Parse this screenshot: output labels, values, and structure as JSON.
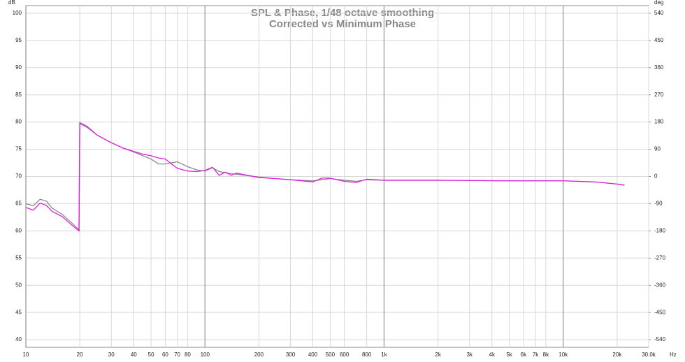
{
  "chart_data": {
    "type": "line",
    "title": "SPL & Phase, 1/48 octave smoothing",
    "subtitle": "Corrected vs Minimum Phase",
    "y_unit": "dB",
    "y2_unit": "deg",
    "x_unit": "Hz",
    "log_x": true,
    "grid": true,
    "xlim": [
      10,
      30000
    ],
    "xticks": [
      10,
      20,
      30,
      40,
      50,
      60,
      70,
      80,
      100,
      200,
      300,
      400,
      500,
      600,
      800,
      {
        "value": 1000,
        "label": "1k"
      },
      {
        "value": 2000,
        "label": "2k"
      },
      {
        "value": 3000,
        "label": "3k"
      },
      {
        "value": 4000,
        "label": "4k"
      },
      {
        "value": 5000,
        "label": "5k"
      },
      {
        "value": 6000,
        "label": "6k"
      },
      {
        "value": 7000,
        "label": "7k"
      },
      {
        "value": 8000,
        "label": "8k"
      },
      {
        "value": 10000,
        "label": "10k"
      },
      {
        "value": 20000,
        "label": "20k"
      },
      {
        "value": 30000,
        "label": "30.0k"
      }
    ],
    "ylim": [
      38.6,
      101.4
    ],
    "yticks": [
      40,
      45,
      50,
      55,
      60,
      65,
      70,
      75,
      80,
      85,
      90,
      95,
      100
    ],
    "y2lim": [
      -565.2,
      565.2
    ],
    "y2ticks": [
      540,
      450,
      360,
      270,
      180,
      90,
      0,
      -90,
      -180,
      -270,
      -360,
      -450,
      -540
    ],
    "x": [
      10,
      11,
      12,
      13,
      14,
      16,
      18,
      19.8,
      20,
      22,
      25,
      30,
      35,
      40,
      45,
      50,
      55,
      60,
      70,
      80,
      90,
      100,
      110,
      120,
      130,
      140,
      150,
      200,
      250,
      300,
      400,
      450,
      500,
      600,
      700,
      800,
      1000,
      2000,
      5000,
      10000,
      15000,
      20000,
      22000
    ],
    "series": [
      {
        "color": "#8a8a8a",
        "values": [
          65,
          64.6,
          65.8,
          65.5,
          64.2,
          63,
          61.5,
          60.2,
          79.7,
          79,
          77.6,
          76.2,
          75.2,
          74.5,
          73.8,
          73.2,
          72.3,
          72.3,
          72.7,
          71.8,
          71.2,
          71,
          71.6,
          70.9,
          70.7,
          70.5,
          70.4,
          69.9,
          69.6,
          69.4,
          69.2,
          69.4,
          69.6,
          69.3,
          69.1,
          69.4,
          69.3,
          69.3,
          69.2,
          69.2,
          69,
          68.6,
          68.4
        ]
      },
      {
        "color": "#e020e0",
        "values": [
          64.3,
          63.8,
          65.1,
          64.7,
          63.6,
          62.6,
          61.1,
          60,
          79.9,
          79.2,
          77.6,
          76.2,
          75.2,
          74.6,
          74.1,
          73.8,
          73.4,
          73.2,
          71.5,
          71,
          70.9,
          71.1,
          71.7,
          70.2,
          70.8,
          70.2,
          70.6,
          69.8,
          69.6,
          69.4,
          69,
          69.7,
          69.7,
          69.1,
          68.9,
          69.5,
          69.3,
          69.3,
          69.2,
          69.2,
          69,
          68.6,
          68.4
        ]
      }
    ]
  }
}
